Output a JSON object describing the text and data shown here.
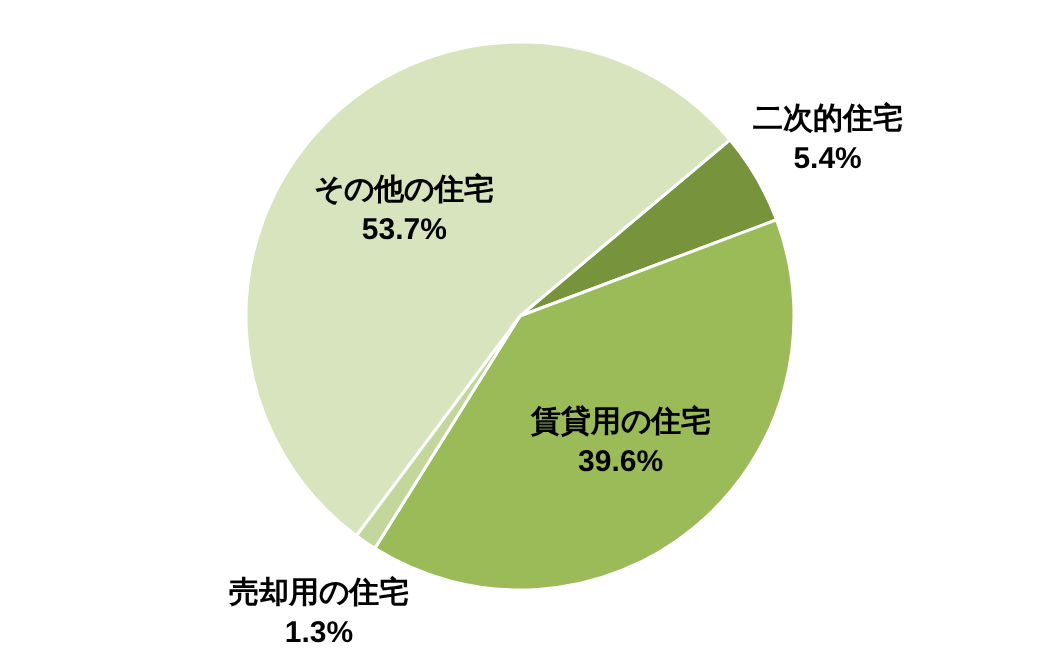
{
  "chart_data": {
    "type": "pie",
    "categories": [
      "二次的住宅",
      "賃貸用の住宅",
      "売却用の住宅",
      "その他の住宅"
    ],
    "values": [
      5.4,
      39.6,
      1.3,
      53.7
    ],
    "value_labels": [
      "5.4%",
      "39.6%",
      "1.3%",
      "53.7%"
    ],
    "colors": [
      "#77933c",
      "#9bbb59",
      "#c3d69b",
      "#d7e4bd"
    ]
  }
}
